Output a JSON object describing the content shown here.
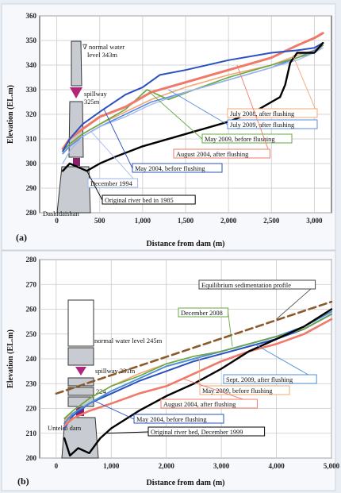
{
  "chart_data": [
    {
      "type": "line",
      "panel_label": "(a)",
      "xlabel": "Distance from dam (m)",
      "ylabel": "Elevation (EL.m)",
      "xlim": [
        -200,
        3200
      ],
      "ylim": [
        280,
        360
      ],
      "x_ticks": [
        0,
        500,
        1000,
        1500,
        2000,
        2500,
        3000
      ],
      "x_tick_labels": [
        "0",
        "500",
        "1,000",
        "1,500",
        "2,000",
        "2,500",
        "3,000"
      ],
      "y_ticks": [
        280,
        290,
        300,
        310,
        320,
        330,
        340,
        350,
        360
      ],
      "grid": true,
      "dam_annotations": [
        "∇ normal water",
        "level 343m",
        "spillway",
        "325m",
        "Dashidaishan"
      ],
      "series": [
        {
          "name": "Original river bed in 1985",
          "color": "#000000",
          "width": 2.4,
          "x": [
            70,
            150,
            350,
            500,
            700,
            1000,
            1500,
            2000,
            2300,
            2500,
            2600,
            2660,
            2720,
            2800,
            2900,
            3000,
            3100
          ],
          "y": [
            297,
            300,
            297,
            300,
            303,
            307,
            312,
            317,
            321,
            325,
            327,
            332,
            341,
            345,
            345,
            345,
            349
          ]
        },
        {
          "name": "December 1994",
          "color": "#9fb7ee",
          "width": 1.3,
          "x": [
            70,
            150,
            300,
            500,
            800,
            1100,
            1500,
            2000,
            2500,
            2800,
            3000,
            3100
          ],
          "y": [
            300,
            305,
            311,
            315,
            319,
            324,
            329,
            334,
            339,
            342,
            345,
            347
          ]
        },
        {
          "name": "May 2004, before flushing",
          "color": "#2a50c0",
          "width": 2.0,
          "x": [
            70,
            150,
            300,
            500,
            800,
            1000,
            1200,
            1500,
            2000,
            2500,
            2800,
            3000,
            3100
          ],
          "y": [
            305,
            310,
            316,
            321,
            328,
            331,
            336,
            338,
            342,
            345,
            346,
            347,
            349
          ]
        },
        {
          "name": "August 2004, after flushing",
          "color": "#ef7a6a",
          "width": 3.0,
          "x": [
            70,
            150,
            300,
            500,
            800,
            1100,
            1500,
            2000,
            2500,
            2800,
            3000,
            3100
          ],
          "y": [
            306,
            310,
            314,
            319,
            323,
            329,
            333,
            338,
            343,
            348,
            351,
            353
          ]
        },
        {
          "name": "May 2009, before flushing",
          "color": "#66a842",
          "width": 1.6,
          "x": [
            70,
            150,
            300,
            500,
            800,
            1050,
            1300,
            1600,
            2000,
            2500,
            2800,
            3000,
            3100
          ],
          "y": [
            305,
            308,
            312,
            316,
            322,
            330,
            326,
            330,
            335,
            340,
            343,
            345,
            348
          ]
        },
        {
          "name": "July 2009, after flushing",
          "color": "#5a8ee0",
          "width": 1.6,
          "x": [
            70,
            150,
            300,
            500,
            800,
            1100,
            1500,
            2000,
            2500,
            2800,
            3000,
            3100
          ],
          "y": [
            304,
            307,
            311,
            315,
            320,
            325,
            329,
            334,
            339,
            343,
            346,
            348
          ]
        },
        {
          "name": "July 2008, after flushing",
          "color": "#f2a873",
          "width": 1.6,
          "x": [
            70,
            150,
            300,
            500,
            800,
            1100,
            1500,
            2000,
            2500,
            2800,
            3000,
            3100
          ],
          "y": [
            304,
            307,
            312,
            316,
            321,
            326,
            331,
            336,
            340,
            344,
            346,
            349
          ]
        }
      ]
    },
    {
      "type": "line",
      "panel_label": "(b)",
      "xlabel": "Distance from dam (m)",
      "ylabel": "Elevation (EL.m)",
      "xlim": [
        -300,
        5000
      ],
      "ylim": [
        200,
        280
      ],
      "x_ticks": [
        0,
        1000,
        2000,
        3000,
        4000,
        5000
      ],
      "x_tick_labels": [
        "0",
        "1,000",
        "2,000",
        "3,000",
        "4,000",
        "5,000"
      ],
      "y_ticks": [
        200,
        210,
        220,
        230,
        240,
        250,
        260,
        270,
        280
      ],
      "grid": true,
      "dam_annotations": [
        "normal water level 245m",
        "spillway 231m",
        "224",
        "Unteldi dam"
      ],
      "series": [
        {
          "name": "Original river bed, December 1999",
          "color": "#000000",
          "width": 2.4,
          "x": [
            150,
            250,
            400,
            600,
            800,
            1000,
            1500,
            2000,
            2500,
            3000,
            3500,
            4000,
            4500,
            5000
          ],
          "y": [
            208,
            201,
            204,
            202,
            208,
            212,
            219,
            225,
            230,
            236,
            243,
            248,
            253,
            260
          ]
        },
        {
          "name": "Equilibrium sedimentation profile",
          "color": "#8b5a2b",
          "width": 2.6,
          "dashed": true,
          "x": [
            0,
            5000
          ],
          "y": [
            226,
            263
          ]
        },
        {
          "name": "December 2008",
          "color": "#66a842",
          "width": 1.6,
          "x": [
            150,
            300,
            600,
            1000,
            1500,
            2000,
            2500,
            3000,
            3500,
            4000,
            4500,
            5000
          ],
          "y": [
            216,
            219,
            224,
            229,
            233,
            238,
            241,
            243,
            246,
            249,
            252,
            258
          ]
        },
        {
          "name": "Sept. 2009, after flushing",
          "color": "#4f8fd6",
          "width": 2.0,
          "x": [
            150,
            300,
            600,
            1000,
            1500,
            2000,
            2500,
            3000,
            3500,
            4000,
            4500,
            5000
          ],
          "y": [
            214,
            218,
            222,
            227,
            232,
            237,
            240,
            243,
            246,
            249,
            253,
            259
          ]
        },
        {
          "name": "May 2009, before flushing",
          "color": "#f2a873",
          "width": 1.6,
          "x": [
            150,
            300,
            600,
            1000,
            1500,
            2000,
            2500,
            3000,
            3500,
            4000,
            4500,
            5000
          ],
          "y": [
            215,
            219,
            224,
            229,
            234,
            238,
            241,
            243,
            246,
            249,
            252,
            258
          ]
        },
        {
          "name": "August 2004, after flushing",
          "color": "#ef7a6a",
          "width": 2.6,
          "x": [
            150,
            300,
            600,
            1000,
            1500,
            2000,
            2500,
            3000,
            3500,
            4000,
            4500,
            5000
          ],
          "y": [
            213,
            216,
            219,
            222,
            226,
            229,
            234,
            239,
            243,
            246,
            250,
            256
          ]
        },
        {
          "name": "May 2004, before flushing",
          "color": "#2a50c0",
          "width": 2.0,
          "x": [
            150,
            300,
            600,
            1000,
            1500,
            2000,
            2500,
            3000,
            3500,
            4000,
            4500,
            5000
          ],
          "y": [
            212,
            217,
            222,
            226,
            231,
            235,
            239,
            242,
            245,
            248,
            252,
            258
          ]
        }
      ]
    }
  ]
}
